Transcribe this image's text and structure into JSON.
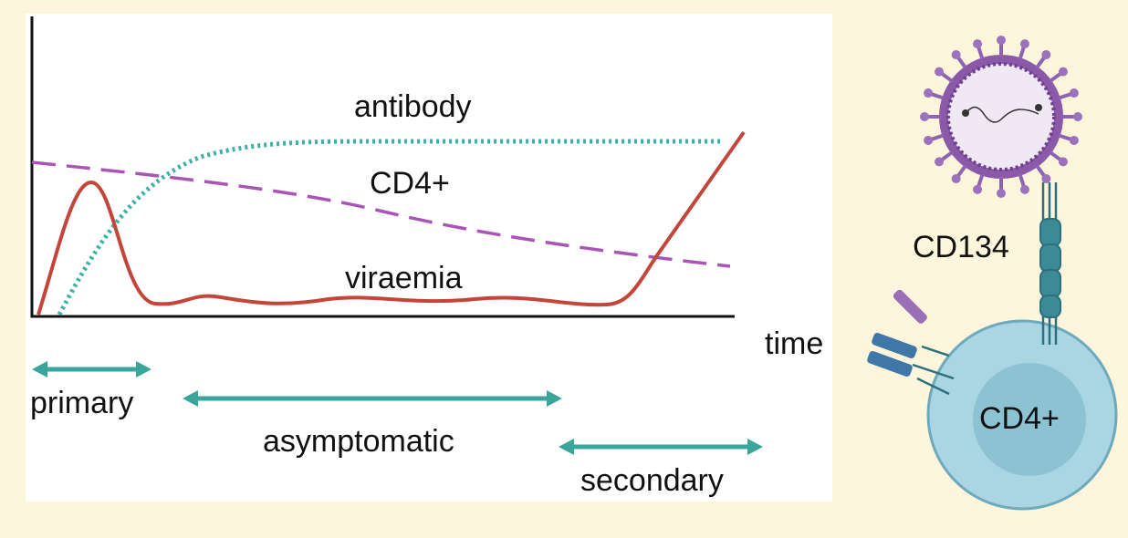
{
  "plot": {
    "curve_labels": {
      "antibody": "antibody",
      "cd4": "CD4+",
      "viraemia": "viraemia"
    },
    "x_axis_label": "time"
  },
  "phases": [
    {
      "label": "primary"
    },
    {
      "label": "asymptomatic"
    },
    {
      "label": "secondary"
    }
  ],
  "cell": {
    "receptor": "CD134",
    "cell_label": "CD4+"
  }
}
